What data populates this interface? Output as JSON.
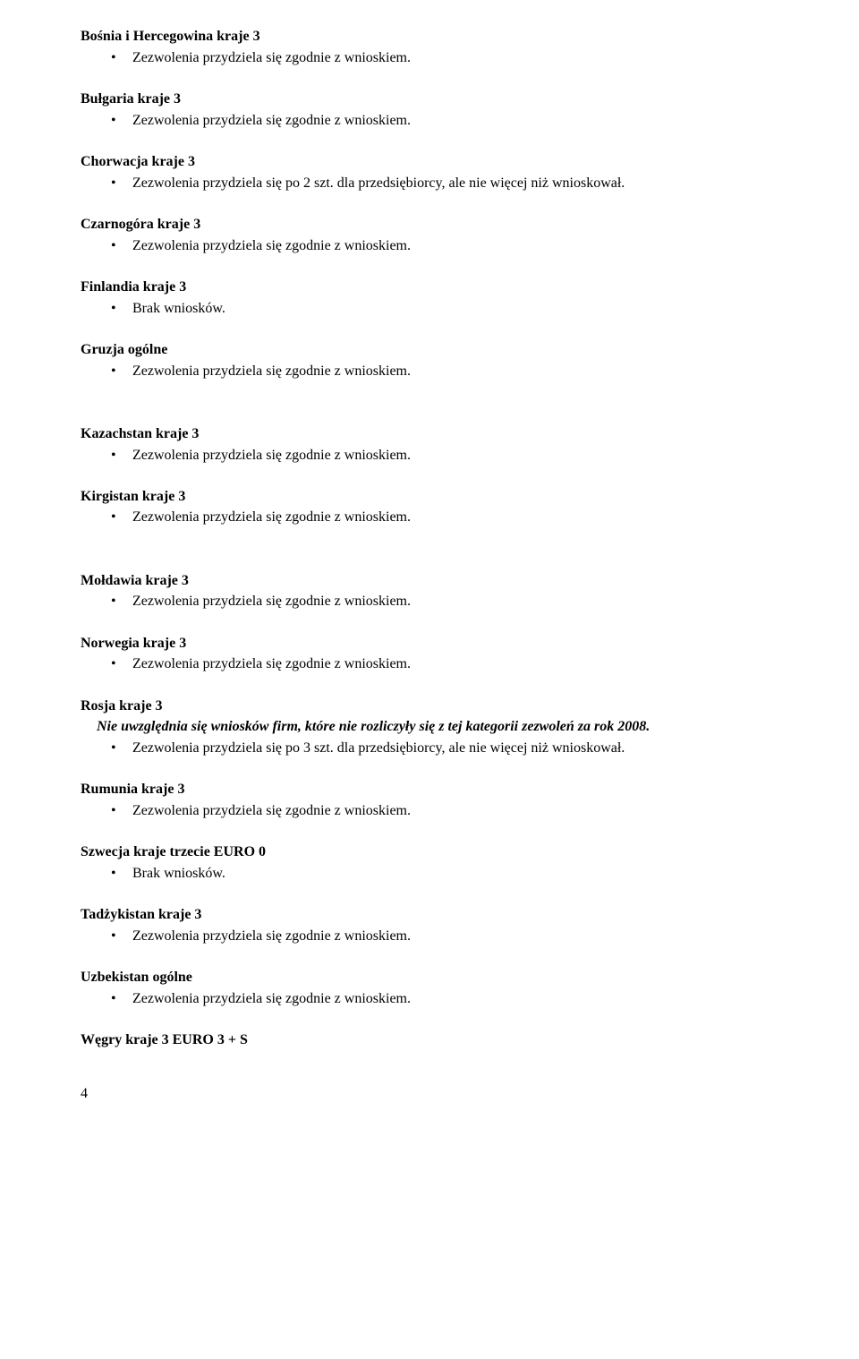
{
  "sections": [
    {
      "heading": "Bośnia i Hercegowina kraje 3",
      "bullets": [
        "Zezwolenia przydziela się zgodnie z wnioskiem."
      ],
      "gap": "normal"
    },
    {
      "heading": "Bułgaria kraje 3",
      "bullets": [
        "Zezwolenia przydziela się zgodnie z wnioskiem."
      ],
      "gap": "normal"
    },
    {
      "heading": "Chorwacja kraje 3",
      "bullets": [
        "Zezwolenia przydziela się po 2 szt. dla przedsiębiorcy, ale nie więcej niż wnioskował."
      ],
      "gap": "normal"
    },
    {
      "heading": "Czarnogóra kraje 3",
      "bullets": [
        "Zezwolenia przydziela się zgodnie z wnioskiem."
      ],
      "gap": "normal"
    },
    {
      "heading": "Finlandia kraje 3",
      "bullets": [
        "Brak wniosków."
      ],
      "gap": "normal"
    },
    {
      "heading": "Gruzja ogólne",
      "bullets": [
        "Zezwolenia przydziela się zgodnie z wnioskiem."
      ],
      "gap": "extra"
    },
    {
      "heading": "Kazachstan kraje 3",
      "bullets": [
        "Zezwolenia przydziela się zgodnie z wnioskiem."
      ],
      "gap": "normal"
    },
    {
      "heading": "Kirgistan kraje 3",
      "bullets": [
        "Zezwolenia przydziela się zgodnie z wnioskiem."
      ],
      "gap": "extra"
    },
    {
      "heading": "Mołdawia kraje 3",
      "bullets": [
        "Zezwolenia przydziela się zgodnie z wnioskiem."
      ],
      "gap": "normal"
    },
    {
      "heading": "Norwegia kraje 3",
      "bullets": [
        "Zezwolenia przydziela się zgodnie z wnioskiem."
      ],
      "gap": "normal"
    },
    {
      "heading": "Rosja kraje 3",
      "italic": "Nie uwzględnia się wniosków firm, które nie rozliczyły  się z  tej kategorii zezwoleń za rok 2008.",
      "bullets": [
        "Zezwolenia przydziela się po 3 szt. dla przedsiębiorcy, ale nie więcej niż wnioskował."
      ],
      "gap": "normal"
    },
    {
      "heading": "Rumunia kraje 3",
      "bullets": [
        "Zezwolenia przydziela się zgodnie z wnioskiem."
      ],
      "gap": "normal"
    },
    {
      "heading": "Szwecja kraje trzecie EURO 0",
      "bullets": [
        "Brak wniosków."
      ],
      "gap": "normal"
    },
    {
      "heading": "Tadżykistan kraje 3",
      "bullets": [
        "Zezwolenia przydziela się zgodnie z wnioskiem."
      ],
      "gap": "normal"
    },
    {
      "heading": "Uzbekistan ogólne",
      "bullets": [
        "Zezwolenia przydziela się zgodnie z wnioskiem."
      ],
      "gap": "normal"
    },
    {
      "heading": "Węgry kraje 3 EURO 3 + S",
      "bullets": [],
      "gap": "normal"
    }
  ],
  "page_number": "4"
}
